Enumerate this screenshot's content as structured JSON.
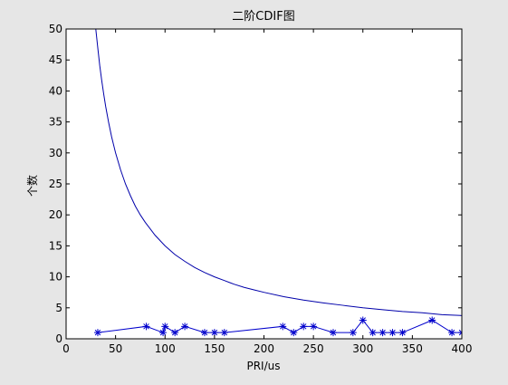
{
  "chart_data": {
    "type": "line",
    "title": "二阶CDIF图",
    "xlabel": "PRI/us",
    "ylabel": "个数",
    "xlim": [
      0,
      400
    ],
    "ylim": [
      0,
      50
    ],
    "xticks": [
      0,
      50,
      100,
      150,
      200,
      250,
      300,
      350,
      400
    ],
    "yticks": [
      0,
      5,
      10,
      15,
      20,
      25,
      30,
      35,
      40,
      45,
      50
    ],
    "grid": false,
    "legend": "none",
    "series": [
      {
        "style": "line",
        "color": "#0000aa",
        "x": [
          29,
          30,
          32,
          34,
          36,
          38,
          40,
          43,
          46,
          50,
          55,
          60,
          65,
          70,
          75,
          80,
          90,
          100,
          110,
          120,
          130,
          140,
          150,
          160,
          170,
          180,
          190,
          200,
          220,
          240,
          260,
          280,
          300,
          320,
          340,
          360,
          380,
          400
        ],
        "y": [
          51.7,
          50.0,
          47.0,
          44.1,
          41.7,
          39.5,
          37.5,
          34.9,
          32.6,
          30.0,
          27.3,
          25.0,
          23.1,
          21.4,
          20.0,
          18.8,
          16.7,
          15.0,
          13.6,
          12.5,
          11.5,
          10.7,
          10.0,
          9.4,
          8.8,
          8.3,
          7.9,
          7.5,
          6.8,
          6.25,
          5.8,
          5.4,
          5.0,
          4.7,
          4.4,
          4.2,
          3.9,
          3.75
        ]
      },
      {
        "style": "line-star",
        "color": "#0000cc",
        "x": [
          32,
          81,
          98,
          100,
          110,
          120,
          140,
          150,
          160,
          219,
          230,
          240,
          250,
          270,
          290,
          300,
          310,
          320,
          330,
          340,
          370,
          390,
          400
        ],
        "y": [
          1,
          2,
          1,
          2,
          1,
          2,
          1,
          1,
          1,
          2,
          1,
          2,
          2,
          1,
          1,
          3,
          1,
          1,
          1,
          1,
          3,
          1,
          1
        ]
      }
    ]
  }
}
